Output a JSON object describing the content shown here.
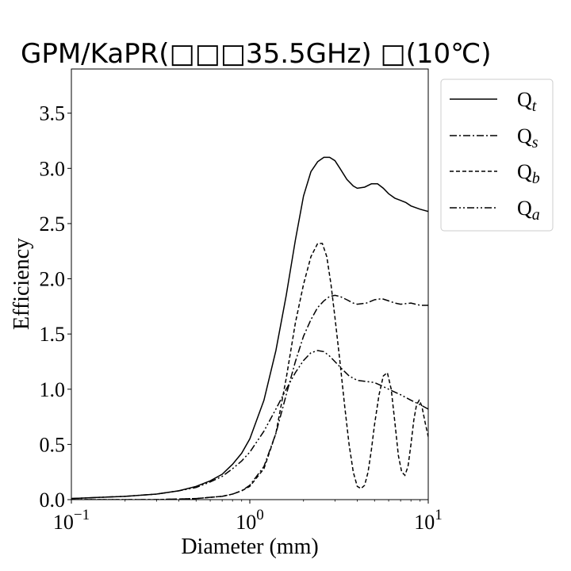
{
  "chart_data": {
    "type": "line",
    "title": "GPM/KaPR(□□□35.5GHz) □(10℃)",
    "xlabel": "Diameter (mm)",
    "ylabel": "Efficiency",
    "xscale": "log",
    "xlim": [
      0.1,
      10
    ],
    "ylim": [
      0,
      3.9
    ],
    "x_ticks": [
      {
        "base": "10",
        "exp": "−1",
        "value": 0.1
      },
      {
        "base": "10",
        "exp": "0",
        "value": 1
      },
      {
        "base": "10",
        "exp": "1",
        "value": 10
      }
    ],
    "y_ticks": [
      "0.0",
      "0.5",
      "1.0",
      "1.5",
      "2.0",
      "2.5",
      "3.0",
      "3.5"
    ],
    "grid": false,
    "legend_position": "outside-right-top",
    "series": [
      {
        "name": "Q",
        "subscript": "t",
        "style": "solid",
        "x": [
          0.1,
          0.2,
          0.3,
          0.4,
          0.5,
          0.6,
          0.7,
          0.8,
          0.9,
          1.0,
          1.2,
          1.4,
          1.6,
          1.8,
          2.0,
          2.2,
          2.4,
          2.6,
          2.8,
          3.0,
          3.2,
          3.5,
          3.8,
          4.0,
          4.4,
          4.8,
          5.2,
          5.6,
          6.0,
          6.5,
          7.0,
          7.5,
          8.0,
          9.0,
          10.0
        ],
        "y": [
          0.01,
          0.03,
          0.05,
          0.08,
          0.12,
          0.17,
          0.23,
          0.32,
          0.42,
          0.55,
          0.9,
          1.35,
          1.85,
          2.35,
          2.75,
          2.97,
          3.06,
          3.1,
          3.1,
          3.07,
          3.0,
          2.9,
          2.84,
          2.82,
          2.83,
          2.86,
          2.86,
          2.82,
          2.77,
          2.73,
          2.71,
          2.69,
          2.66,
          2.63,
          2.61
        ]
      },
      {
        "name": "Q",
        "subscript": "s",
        "style": "dashdot",
        "x": [
          0.1,
          0.3,
          0.5,
          0.7,
          0.8,
          0.9,
          1.0,
          1.2,
          1.4,
          1.6,
          1.8,
          2.0,
          2.2,
          2.4,
          2.6,
          2.8,
          3.0,
          3.2,
          3.5,
          3.8,
          4.0,
          4.5,
          5.0,
          5.5,
          6.0,
          6.5,
          7.0,
          8.0,
          9.0,
          10.0
        ],
        "y": [
          0.0,
          0.0,
          0.01,
          0.03,
          0.05,
          0.08,
          0.13,
          0.3,
          0.6,
          0.95,
          1.25,
          1.48,
          1.63,
          1.74,
          1.8,
          1.84,
          1.85,
          1.84,
          1.81,
          1.78,
          1.77,
          1.78,
          1.81,
          1.82,
          1.8,
          1.78,
          1.77,
          1.78,
          1.76,
          1.76
        ]
      },
      {
        "name": "Q",
        "subscript": "b",
        "style": "dashed",
        "x": [
          0.1,
          0.3,
          0.5,
          0.6,
          0.7,
          0.8,
          0.9,
          1.0,
          1.2,
          1.4,
          1.6,
          1.8,
          2.0,
          2.2,
          2.4,
          2.55,
          2.7,
          2.85,
          3.0,
          3.2,
          3.4,
          3.6,
          3.8,
          4.0,
          4.2,
          4.4,
          4.6,
          4.8,
          5.0,
          5.3,
          5.6,
          5.9,
          6.2,
          6.5,
          6.8,
          7.1,
          7.4,
          7.7,
          8.0,
          8.3,
          8.6,
          8.9,
          9.2,
          9.6,
          10.0
        ],
        "y": [
          0.0,
          0.0,
          0.01,
          0.02,
          0.03,
          0.05,
          0.08,
          0.12,
          0.28,
          0.6,
          1.1,
          1.6,
          1.95,
          2.2,
          2.32,
          2.32,
          2.2,
          1.95,
          1.65,
          1.25,
          0.85,
          0.5,
          0.25,
          0.12,
          0.1,
          0.13,
          0.25,
          0.45,
          0.68,
          0.95,
          1.12,
          1.15,
          1.0,
          0.7,
          0.4,
          0.25,
          0.22,
          0.3,
          0.5,
          0.72,
          0.86,
          0.9,
          0.85,
          0.7,
          0.57
        ]
      },
      {
        "name": "Q",
        "subscript": "a",
        "style": "dashdotdot",
        "x": [
          0.1,
          0.2,
          0.3,
          0.4,
          0.5,
          0.6,
          0.7,
          0.8,
          0.9,
          1.0,
          1.2,
          1.4,
          1.6,
          1.8,
          2.0,
          2.2,
          2.4,
          2.6,
          2.8,
          3.0,
          3.3,
          3.6,
          4.0,
          4.5,
          5.0,
          5.5,
          6.0,
          7.0,
          8.0,
          9.0,
          10.0
        ],
        "y": [
          0.01,
          0.03,
          0.05,
          0.08,
          0.11,
          0.16,
          0.21,
          0.28,
          0.35,
          0.43,
          0.62,
          0.82,
          1.0,
          1.15,
          1.26,
          1.33,
          1.35,
          1.34,
          1.3,
          1.25,
          1.18,
          1.12,
          1.08,
          1.07,
          1.06,
          1.03,
          1.0,
          0.95,
          0.9,
          0.86,
          0.82
        ]
      }
    ]
  }
}
